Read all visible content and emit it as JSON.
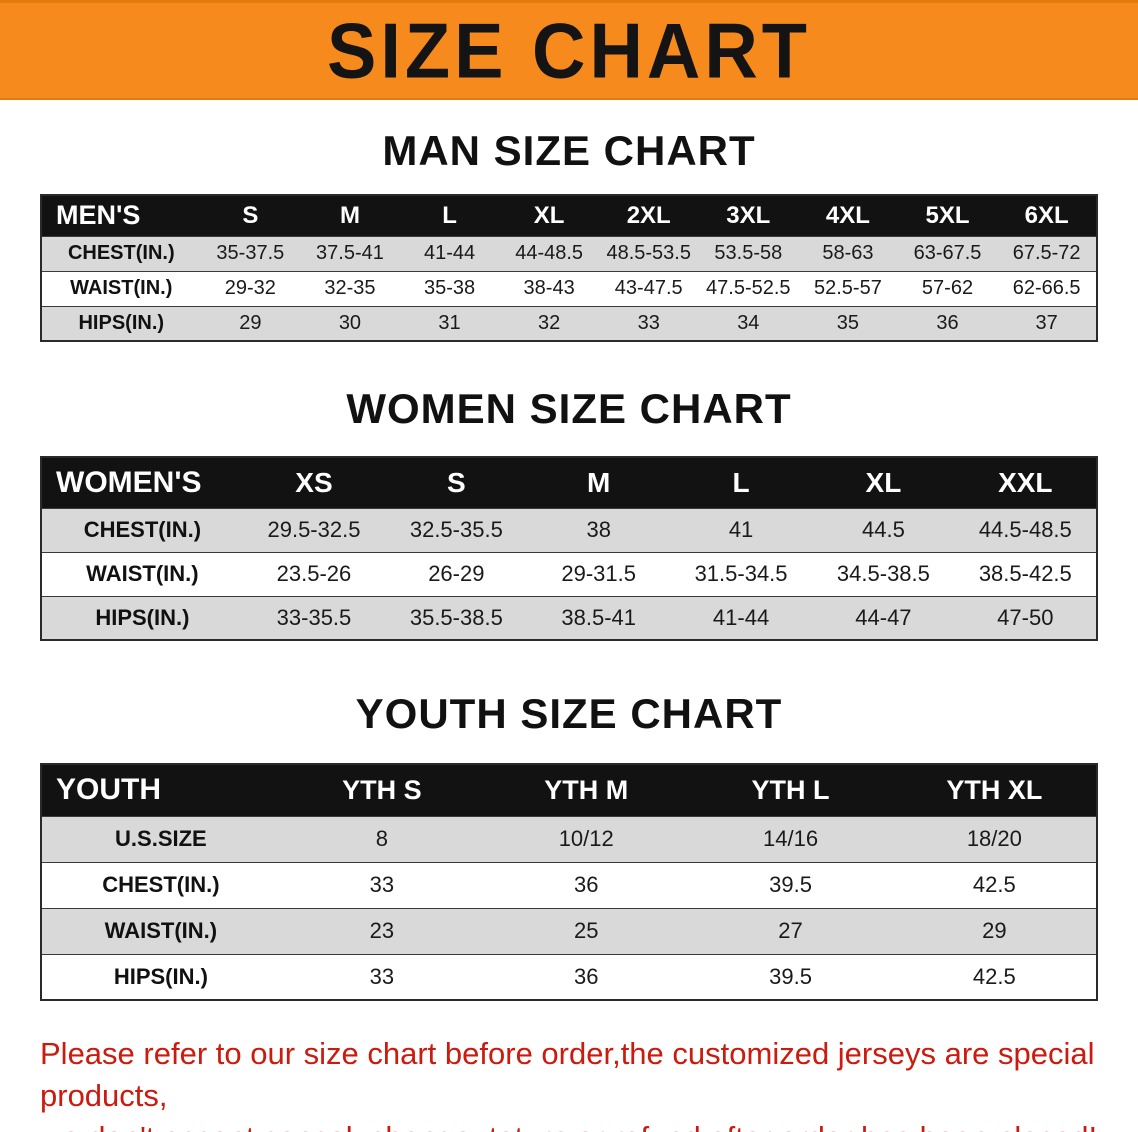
{
  "banner": {
    "title": "SIZE CHART",
    "bg_color": "#f68a1c"
  },
  "sections": [
    {
      "id": "men",
      "heading": "MAN SIZE CHART",
      "table": {
        "header": [
          "MEN'S",
          "S",
          "M",
          "L",
          "XL",
          "2XL",
          "3XL",
          "4XL",
          "5XL",
          "6XL"
        ],
        "rows": [
          [
            "CHEST(IN.)",
            "35-37.5",
            "37.5-41",
            "41-44",
            "44-48.5",
            "48.5-53.5",
            "53.5-58",
            "58-63",
            "63-67.5",
            "67.5-72"
          ],
          [
            "WAIST(IN.)",
            "29-32",
            "32-35",
            "35-38",
            "38-43",
            "43-47.5",
            "47.5-52.5",
            "52.5-57",
            "57-62",
            "62-66.5"
          ],
          [
            "HIPS(IN.)",
            "29",
            "30",
            "31",
            "32",
            "33",
            "34",
            "35",
            "36",
            "37"
          ]
        ]
      }
    },
    {
      "id": "women",
      "heading": "WOMEN SIZE CHART",
      "table": {
        "header": [
          "WOMEN'S",
          "XS",
          "S",
          "M",
          "L",
          "XL",
          "XXL"
        ],
        "rows": [
          [
            "CHEST(IN.)",
            "29.5-32.5",
            "32.5-35.5",
            "38",
            "41",
            "44.5",
            "44.5-48.5"
          ],
          [
            "WAIST(IN.)",
            "23.5-26",
            "26-29",
            "29-31.5",
            "31.5-34.5",
            "34.5-38.5",
            "38.5-42.5"
          ],
          [
            "HIPS(IN.)",
            "33-35.5",
            "35.5-38.5",
            "38.5-41",
            "41-44",
            "44-47",
            "47-50"
          ]
        ]
      }
    },
    {
      "id": "youth",
      "heading": "YOUTH SIZE CHART",
      "table": {
        "header": [
          "YOUTH",
          "YTH S",
          "YTH M",
          "YTH L",
          "YTH XL"
        ],
        "rows": [
          [
            "U.S.SIZE",
            "8",
            "10/12",
            "14/16",
            "18/20"
          ],
          [
            "CHEST(IN.)",
            "33",
            "36",
            "39.5",
            "42.5"
          ],
          [
            "WAIST(IN.)",
            "23",
            "25",
            "27",
            "29"
          ],
          [
            "HIPS(IN.)",
            "33",
            "36",
            "39.5",
            "42.5"
          ]
        ]
      }
    }
  ],
  "footer_note": {
    "lines": [
      "Please refer to our size chart before order,the customized jerseys are special products,",
      "we don't accept cancel, change, teturn or refund after order has been placed!"
    ],
    "color": "#cc1a0e"
  }
}
